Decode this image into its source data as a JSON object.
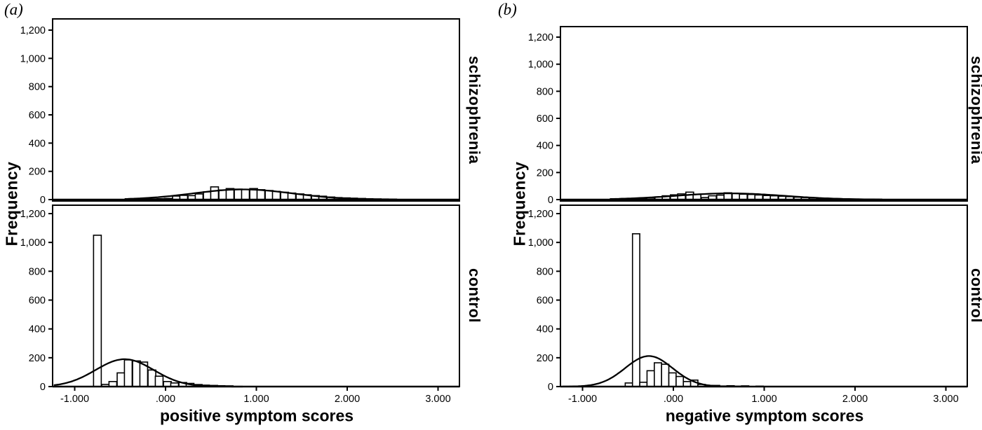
{
  "figure": {
    "background": "#ffffff",
    "ink_color": "#000000",
    "panels": [
      {
        "tag": "(a)",
        "xlabel": "positive symptom scores",
        "ylabel": "Frequency",
        "facets": [
          "schizophrenia",
          "control"
        ]
      },
      {
        "tag": "(b)",
        "xlabel": "negative symptom scores",
        "ylabel": "Frequency",
        "facets": [
          "schizophrenia",
          "control"
        ]
      }
    ],
    "y_ticks": [
      {
        "v": 0,
        "label": "0"
      },
      {
        "v": 200,
        "label": "200"
      },
      {
        "v": 400,
        "label": "400"
      },
      {
        "v": 600,
        "label": "600"
      },
      {
        "v": 800,
        "label": "800"
      },
      {
        "v": 1000,
        "label": "1,000"
      },
      {
        "v": 1200,
        "label": "1,200"
      }
    ],
    "x_ticks": [
      {
        "v": -1,
        "label": "-1.000"
      },
      {
        "v": 0,
        "label": ".000"
      },
      {
        "v": 1,
        "label": "1.000"
      },
      {
        "v": 2,
        "label": "2.000"
      },
      {
        "v": 3,
        "label": "3.000"
      }
    ]
  },
  "chart_data": [
    {
      "panel": "(a)",
      "facet": "schizophrenia",
      "type": "bar",
      "title": "",
      "xlabel": "positive symptom scores",
      "ylabel": "Frequency",
      "xlim": [
        -1.25,
        3.25
      ],
      "ylim": [
        0,
        1300
      ],
      "bin_width": 0.085,
      "bin_centers": [
        -0.31,
        -0.22,
        -0.14,
        -0.05,
        0.03,
        0.12,
        0.2,
        0.29,
        0.37,
        0.46,
        0.54,
        0.63,
        0.71,
        0.8,
        0.88,
        0.97,
        1.05,
        1.14,
        1.22,
        1.31,
        1.39,
        1.48,
        1.56,
        1.65,
        1.73,
        1.82,
        1.9,
        1.99,
        2.07,
        2.16,
        2.24,
        2.33,
        2.41,
        2.5
      ],
      "frequencies": [
        3,
        4,
        5,
        6,
        8,
        25,
        30,
        28,
        40,
        55,
        90,
        68,
        78,
        74,
        72,
        78,
        70,
        64,
        58,
        52,
        46,
        40,
        34,
        28,
        24,
        18,
        14,
        12,
        10,
        8,
        6,
        5,
        4,
        3
      ],
      "normal_curve": {
        "mean": 0.85,
        "sd": 0.55,
        "peak": 72,
        "range": [
          -0.45,
          2.55
        ]
      }
    },
    {
      "panel": "(a)",
      "facet": "control",
      "type": "bar",
      "title": "",
      "xlabel": "positive symptom scores",
      "ylabel": "Frequency",
      "xlim": [
        -1.25,
        3.25
      ],
      "ylim": [
        0,
        1300
      ],
      "bin_width": 0.085,
      "bin_centers": [
        -0.75,
        -0.66,
        -0.58,
        -0.49,
        -0.41,
        -0.32,
        -0.24,
        -0.15,
        -0.07,
        0.02,
        0.1,
        0.19,
        0.27,
        0.36,
        0.44,
        0.53,
        0.61,
        0.7
      ],
      "frequencies": [
        1050,
        15,
        35,
        95,
        185,
        178,
        170,
        115,
        72,
        35,
        25,
        28,
        22,
        14,
        10,
        8,
        6,
        5
      ],
      "normal_curve": {
        "mean": -0.45,
        "sd": 0.32,
        "peak": 190,
        "range": [
          -1.23,
          0.85
        ]
      }
    },
    {
      "panel": "(b)",
      "facet": "schizophrenia",
      "type": "bar",
      "title": "",
      "xlabel": "negative symptom scores",
      "ylabel": "Frequency",
      "xlim": [
        -1.25,
        3.25
      ],
      "ylim": [
        0,
        1300
      ],
      "bin_width": 0.085,
      "bin_centers": [
        -0.59,
        -0.5,
        -0.42,
        -0.33,
        -0.25,
        -0.16,
        -0.08,
        0.01,
        0.09,
        0.18,
        0.26,
        0.35,
        0.43,
        0.52,
        0.6,
        0.69,
        0.77,
        0.86,
        0.94,
        1.03,
        1.11,
        1.2,
        1.28,
        1.37,
        1.45,
        1.54,
        1.62,
        1.71,
        1.79,
        1.88,
        1.96,
        2.05,
        2.13,
        2.22
      ],
      "frequencies": [
        3,
        4,
        5,
        7,
        12,
        20,
        28,
        35,
        42,
        55,
        40,
        15,
        28,
        33,
        50,
        45,
        40,
        38,
        34,
        30,
        28,
        25,
        22,
        18,
        15,
        12,
        10,
        8,
        6,
        5,
        4,
        3,
        3,
        2
      ],
      "normal_curve": {
        "mean": 0.62,
        "sd": 0.6,
        "peak": 46,
        "range": [
          -0.7,
          2.3
        ]
      }
    },
    {
      "panel": "(b)",
      "facet": "control",
      "type": "bar",
      "title": "",
      "xlabel": "negative symptom scores",
      "ylabel": "Frequency",
      "xlim": [
        -1.25,
        3.25
      ],
      "ylim": [
        0,
        1300
      ],
      "bin_width": 0.08,
      "bin_centers": [
        -0.49,
        -0.41,
        -0.33,
        -0.25,
        -0.17,
        -0.09,
        -0.01,
        0.07,
        0.15,
        0.23,
        0.31,
        0.39,
        0.47,
        0.55,
        0.63,
        0.71,
        0.79,
        0.95
      ],
      "frequencies": [
        25,
        1060,
        30,
        110,
        165,
        155,
        95,
        70,
        35,
        45,
        15,
        8,
        8,
        4,
        6,
        3,
        5,
        3
      ],
      "normal_curve": {
        "mean": -0.27,
        "sd": 0.26,
        "peak": 212,
        "range": [
          -1.22,
          0.62
        ]
      }
    }
  ]
}
